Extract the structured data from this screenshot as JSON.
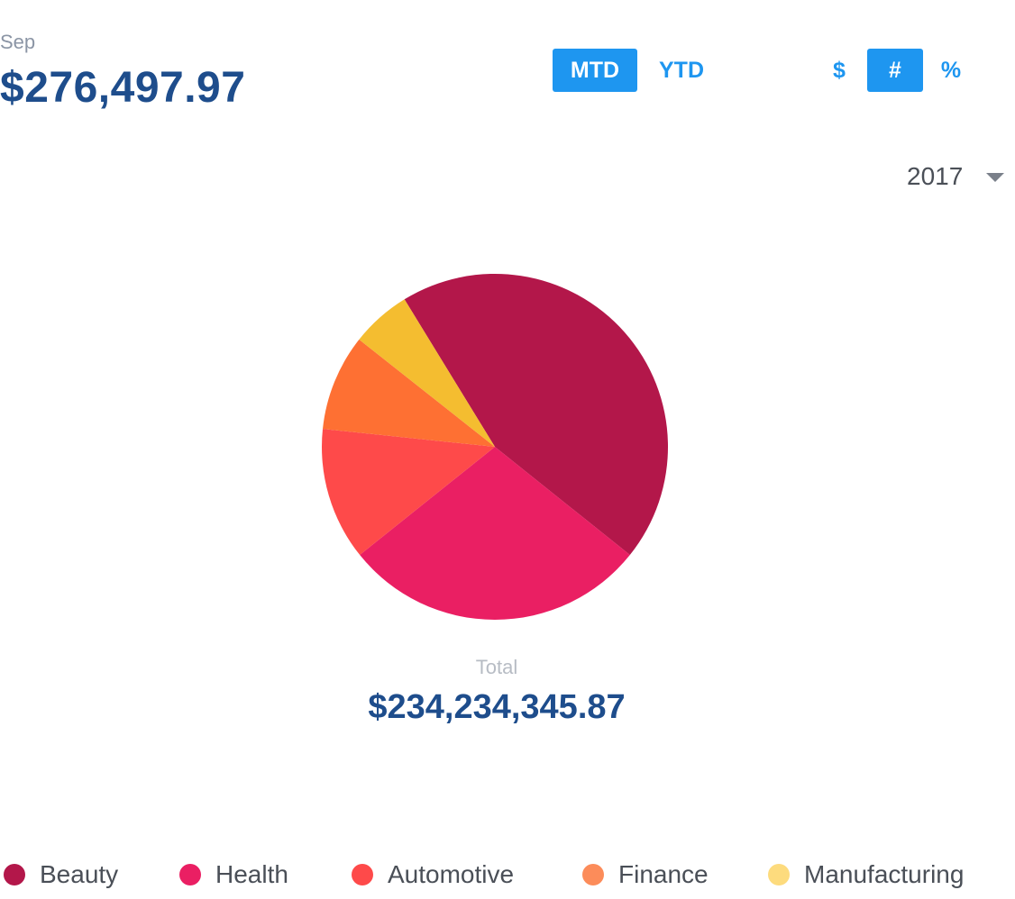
{
  "header": {
    "period_label": "Sep",
    "amount": "$276,497.97"
  },
  "range_toggle": {
    "options": [
      {
        "label": "MTD",
        "active": true
      },
      {
        "label": "YTD",
        "active": false
      }
    ]
  },
  "unit_toggle": {
    "options": [
      {
        "label": "$",
        "active": false
      },
      {
        "label": "#",
        "active": true
      },
      {
        "label": "%",
        "active": false
      }
    ]
  },
  "year_select": {
    "value": "2017",
    "icon": "chevron-down-icon"
  },
  "total": {
    "label": "Total",
    "value": "$234,234,345.87"
  },
  "chart_data": {
    "type": "pie",
    "title": "",
    "slices": [
      {
        "label": "Beauty",
        "value": 44.5,
        "color": "#b3174a"
      },
      {
        "label": "Health",
        "value": 28.5,
        "color": "#ea1f63"
      },
      {
        "label": "Automotive",
        "value": 12.4,
        "color": "#fe4a4a"
      },
      {
        "label": "Finance",
        "value": 9.0,
        "color": "#fe7033"
      },
      {
        "label": "Manufacturing",
        "value": 5.6,
        "color": "#f4bd30"
      }
    ],
    "start_angle_deg": -31.5,
    "direction": "clockwise",
    "legend_position": "bottom"
  },
  "legend": {
    "items": [
      {
        "label": "Beauty",
        "color": "#b3174a"
      },
      {
        "label": "Health",
        "color": "#ea1f63"
      },
      {
        "label": "Automotive",
        "color": "#fe4a4a"
      },
      {
        "label": "Finance",
        "color": "#fc8c5a"
      },
      {
        "label": "Manufacturing",
        "color": "#fddb7d"
      }
    ]
  }
}
